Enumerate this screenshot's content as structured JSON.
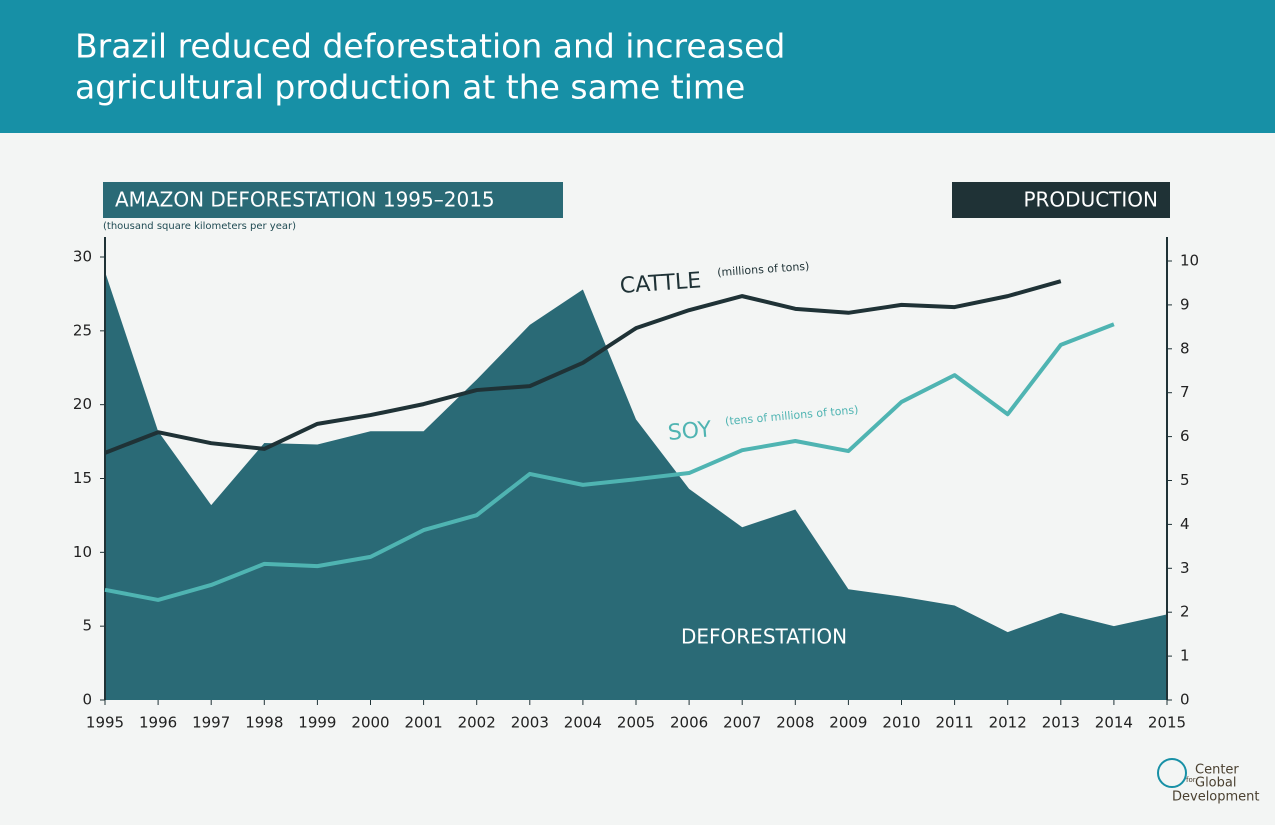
{
  "chart_data": {
    "type": "area_line",
    "title": [
      "Brazil reduced deforestation and increased",
      "agricultural production at the same time"
    ],
    "left_panel_label": "AMAZON DEFORESTATION 1995–2015",
    "left_axis_label": "(thousand square kilometers per year)",
    "right_panel_label": "PRODUCTION",
    "annotations": [
      "CATTLE",
      "(millions of tons)",
      "SOY",
      "(tens of millions of tons)",
      "DEFORESTATION"
    ],
    "x": [
      1995,
      1996,
      1997,
      1998,
      1999,
      2000,
      2001,
      2002,
      2003,
      2004,
      2005,
      2006,
      2007,
      2008,
      2009,
      2010,
      2011,
      2012,
      2013,
      2014,
      2015
    ],
    "xlim": [
      1995,
      2015
    ],
    "xticks": [
      1995,
      1996,
      1997,
      1998,
      1999,
      2000,
      2001,
      2002,
      2003,
      2004,
      2005,
      2006,
      2007,
      2008,
      2009,
      2010,
      2011,
      2012,
      2013,
      2014,
      2015
    ],
    "ylim": [
      0,
      30
    ],
    "yticks": [
      0,
      5,
      10,
      15,
      20,
      25,
      30
    ],
    "y2lim": [
      0,
      10
    ],
    "y2ticks": [
      0,
      1,
      2,
      3,
      4,
      5,
      6,
      7,
      8,
      9,
      10
    ],
    "series": [
      {
        "name": "Deforestation",
        "type": "area",
        "color": "#2a6a76",
        "values": [
          29.0,
          18.2,
          13.2,
          17.4,
          17.3,
          18.2,
          18.2,
          21.7,
          25.4,
          27.8,
          19.0,
          14.3,
          11.7,
          12.9,
          7.5,
          7.0,
          6.4,
          4.6,
          5.9,
          5.0,
          5.8
        ]
      },
      {
        "name": "Cattle",
        "type": "line",
        "axis": "y2",
        "color": "#1f3236",
        "values": [
          5.63,
          6.1,
          5.85,
          5.72,
          6.29,
          6.49,
          6.74,
          7.06,
          7.15,
          7.68,
          8.47,
          8.88,
          9.2,
          8.91,
          8.82,
          9.0,
          8.95,
          9.2,
          9.54,
          null,
          null
        ]
      },
      {
        "name": "Soy",
        "type": "line",
        "axis": "y2",
        "color": "#4fb4b2",
        "values": [
          2.51,
          2.28,
          2.62,
          3.1,
          3.05,
          3.26,
          3.87,
          4.21,
          5.15,
          4.9,
          5.03,
          5.17,
          5.69,
          5.9,
          5.67,
          6.79,
          7.4,
          6.51,
          8.09,
          8.56,
          null
        ]
      }
    ],
    "logo": [
      "Center",
      "for",
      "Global",
      "Development"
    ]
  }
}
